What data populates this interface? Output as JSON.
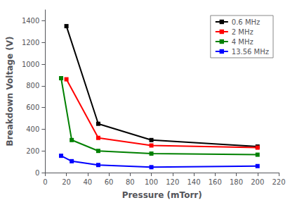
{
  "chart_data": {
    "type": "line",
    "xlabel": "Pressure (mTorr)",
    "ylabel": "Breakdown Voltage (V)",
    "xlim": [
      0,
      220
    ],
    "ylim": [
      0,
      1500
    ],
    "xticks": [
      0,
      20,
      40,
      60,
      80,
      100,
      120,
      140,
      160,
      180,
      200,
      220
    ],
    "yticks": [
      0,
      200,
      400,
      600,
      800,
      1000,
      1200,
      1400
    ],
    "series": [
      {
        "name": "0.6 MHz",
        "color": "black",
        "x": [
          20,
          50,
          100,
          200
        ],
        "values": [
          1350,
          450,
          300,
          240
        ]
      },
      {
        "name": "2 MHz",
        "color": "red",
        "x": [
          20,
          50,
          100,
          200
        ],
        "values": [
          860,
          320,
          250,
          230
        ]
      },
      {
        "name": "4 MHz",
        "color": "green",
        "x": [
          15,
          25,
          50,
          100,
          200
        ],
        "values": [
          870,
          300,
          200,
          175,
          165
        ]
      },
      {
        "name": "13.56 MHz",
        "color": "blue",
        "x": [
          15,
          25,
          50,
          100,
          200
        ],
        "values": [
          155,
          105,
          70,
          50,
          60
        ]
      }
    ],
    "marker": "square",
    "legend": "upper right",
    "grid": false
  }
}
